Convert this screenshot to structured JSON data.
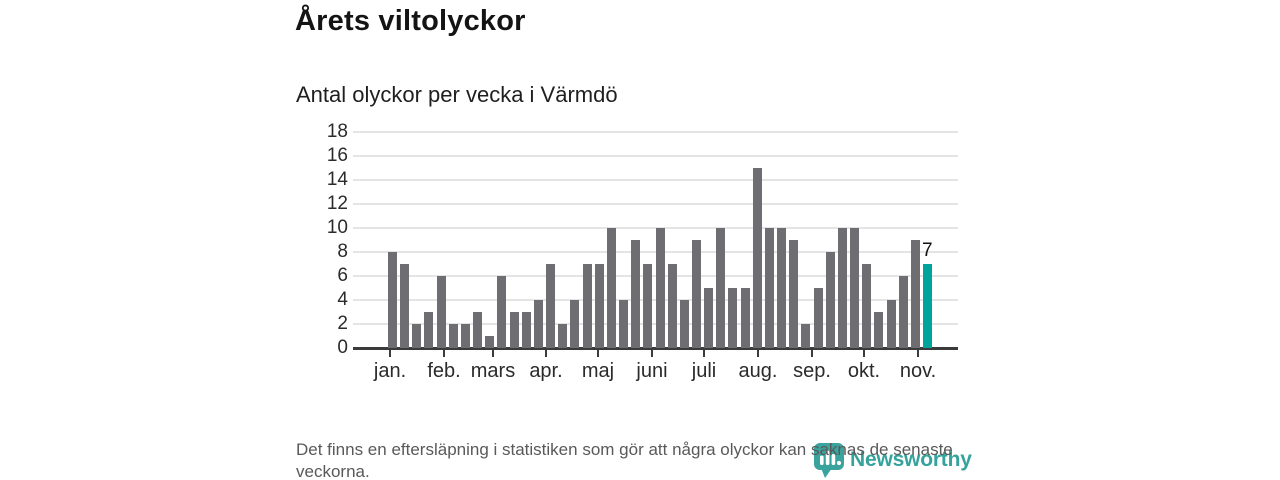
{
  "header": {
    "title": "Årets viltolyckor",
    "subtitle": "Antal olyckor per vecka i Värmdö"
  },
  "chart_data": {
    "type": "bar",
    "title": "Årets viltolyckor",
    "subtitle": "Antal olyckor per vecka i Värmdö",
    "xlabel": "",
    "ylabel": "Antal olyckor per vecka",
    "x_weeks": [
      1,
      2,
      3,
      4,
      5,
      6,
      7,
      8,
      9,
      10,
      11,
      12,
      13,
      14,
      15,
      16,
      17,
      18,
      19,
      20,
      21,
      22,
      23,
      24,
      25,
      26,
      27,
      28,
      29,
      30,
      31,
      32,
      33,
      34,
      35,
      36,
      37,
      38,
      39,
      40,
      41,
      42,
      43,
      44,
      45
    ],
    "values": [
      8,
      7,
      2,
      3,
      6,
      2,
      2,
      3,
      1,
      6,
      3,
      3,
      4,
      7,
      2,
      4,
      7,
      7,
      10,
      4,
      9,
      7,
      10,
      7,
      4,
      9,
      5,
      10,
      5,
      5,
      15,
      10,
      10,
      9,
      2,
      5,
      8,
      10,
      10,
      7,
      3,
      4,
      6,
      9,
      7
    ],
    "highlight_index": 44,
    "highlight_value": 7,
    "highlight_label": "7",
    "ylim": [
      0,
      18
    ],
    "yticks": [
      0,
      2,
      4,
      6,
      8,
      10,
      12,
      14,
      16,
      18
    ],
    "grid": true,
    "legend": "none",
    "month_labels": [
      "jan.",
      "feb.",
      "mars",
      "apr.",
      "maj",
      "juni",
      "juli",
      "aug.",
      "sep.",
      "okt.",
      "nov."
    ],
    "month_week_offsets": [
      0,
      4.43,
      8.43,
      12.86,
      17.14,
      21.57,
      25.86,
      30.29,
      34.71,
      39.0,
      43.43
    ],
    "colors": {
      "bar": "#6e6e72",
      "highlight": "#00a49c",
      "gridline": "#e4e4e4",
      "axis": "#3b3b3b"
    }
  },
  "footer": {
    "note": "Det finns en eftersläpning i statistiken som gör att några olyckor kan saknas de senaste veckorna."
  },
  "logo": {
    "name": "Newsworthy",
    "color": "#35a39c",
    "icon": "newsworthy-barchart-pin-icon"
  }
}
